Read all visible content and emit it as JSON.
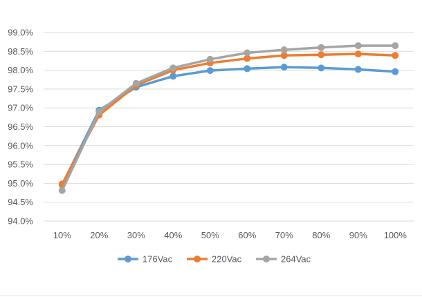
{
  "chart_data": {
    "type": "line",
    "title": "",
    "xlabel": "",
    "ylabel": "",
    "categories": [
      "10%",
      "20%",
      "30%",
      "40%",
      "50%",
      "60%",
      "70%",
      "80%",
      "90%",
      "100%"
    ],
    "ylim": [
      0.94,
      0.99
    ],
    "ytick_step": 0.005,
    "ytick_labels": [
      "94.0%",
      "94.5%",
      "95.0%",
      "95.5%",
      "96.0%",
      "96.5%",
      "97.0%",
      "97.5%",
      "98.0%",
      "98.5%",
      "99.0%"
    ],
    "grid": true,
    "legend_position": "bottom",
    "series": [
      {
        "name": "176Vac",
        "color": "#5b9bd5",
        "values": [
          0.9496,
          0.9694,
          0.9755,
          0.9784,
          0.9799,
          0.9804,
          0.9808,
          0.9806,
          0.9802,
          0.9796
        ]
      },
      {
        "name": "220Vac",
        "color": "#ed7d31",
        "values": [
          0.9498,
          0.9681,
          0.976,
          0.98,
          0.9819,
          0.9831,
          0.9839,
          0.9841,
          0.9843,
          0.9839
        ]
      },
      {
        "name": "264Vac",
        "color": "#a5a5a5",
        "values": [
          0.9481,
          0.969,
          0.9765,
          0.9806,
          0.9829,
          0.9846,
          0.9854,
          0.986,
          0.9865,
          0.9865
        ]
      }
    ]
  }
}
